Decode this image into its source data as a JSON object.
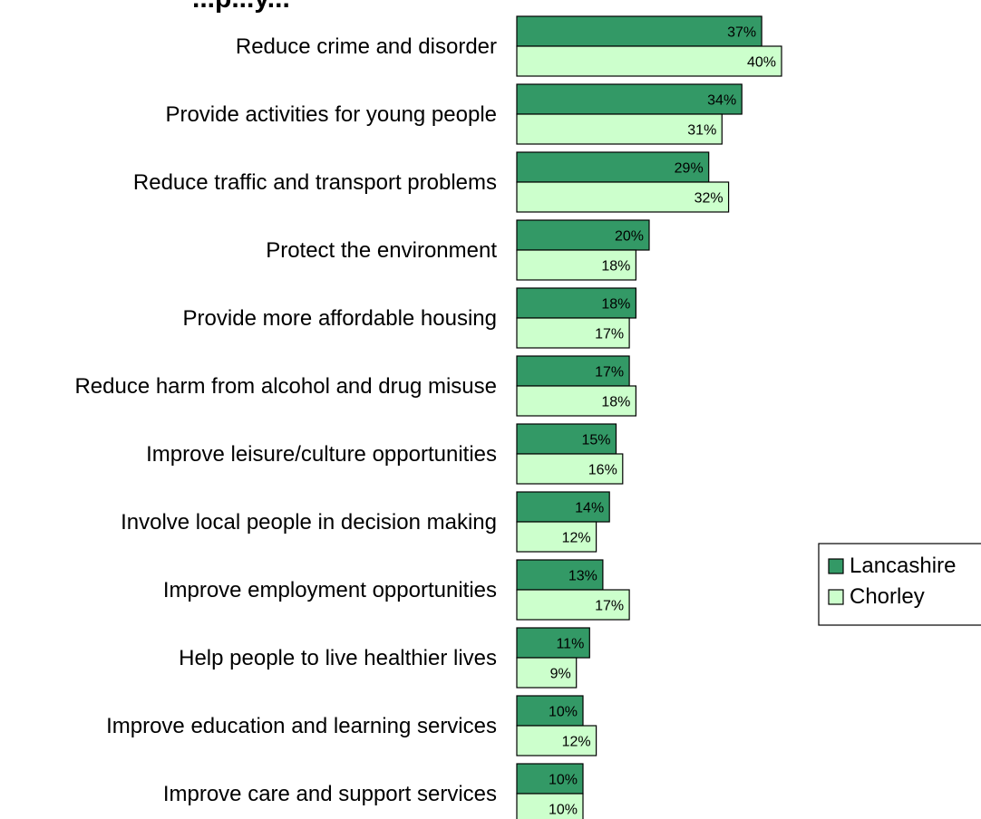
{
  "chart_data": {
    "type": "bar",
    "orientation": "horizontal",
    "title_fragment": "...p...y...",
    "categories": [
      "Reduce crime and disorder",
      "Provide activities for young people",
      "Reduce traffic and transport problems",
      "Protect the environment",
      "Provide more affordable housing",
      "Reduce harm from alcohol and drug misuse",
      "Improve leisure/culture opportunities",
      "Involve local people in decision making",
      "Improve employment opportunities",
      "Help people to live healthier lives",
      "Improve education and learning services",
      "Improve care and support services"
    ],
    "series": [
      {
        "name": "Lancashire",
        "values": [
          37,
          34,
          29,
          20,
          18,
          17,
          15,
          14,
          13,
          11,
          10,
          10
        ],
        "color": "#339966"
      },
      {
        "name": "Chorley",
        "values": [
          40,
          31,
          32,
          18,
          17,
          18,
          16,
          12,
          17,
          9,
          12,
          10
        ],
        "color": "#ccffcc"
      }
    ],
    "value_suffix": "%",
    "xlim": [
      0,
      100
    ],
    "grid": false,
    "axis_visible": false,
    "legend_position": "right"
  }
}
